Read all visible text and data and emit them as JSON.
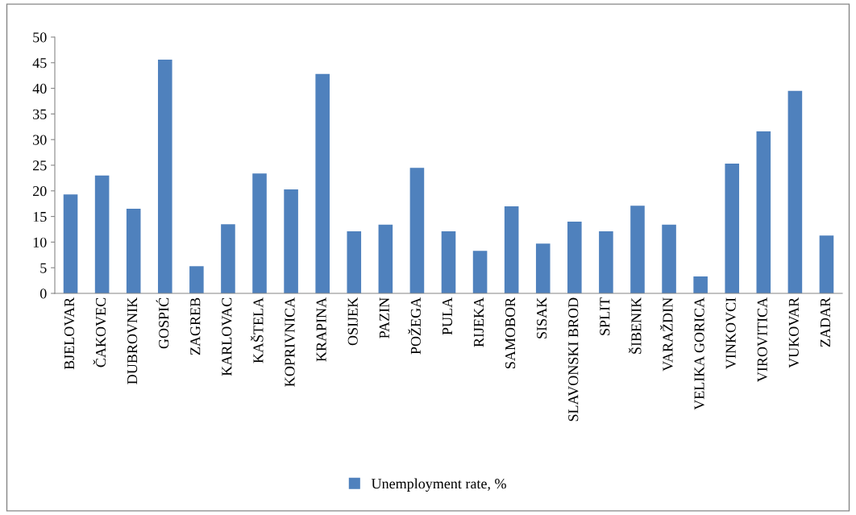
{
  "chart_data": {
    "type": "bar",
    "categories": [
      "BJELOVAR",
      "ČAKOVEC",
      "DUBROVNIK",
      "GOSPIĆ",
      "ZAGREB",
      "KARLOVAC",
      "KAŠTELA",
      "KOPRIVNICA",
      "KRAPINA",
      "OSIJEK",
      "PAZIN",
      "POŽEGA",
      "PULA",
      "RIJEKA",
      "SAMOBOR",
      "SISAK",
      "SLAVONSKI BROD",
      "SPLIT",
      "ŠIBENIK",
      "VARAŽDIN",
      "VELIKA GORICA",
      "VINKOVCI",
      "VIROVITICA",
      "VUKOVAR",
      "ZADAR"
    ],
    "series": [
      {
        "name": "Unemployment rate, %",
        "color": "#4f81bd",
        "values": [
          19.3,
          23.0,
          16.5,
          45.6,
          5.3,
          13.5,
          23.4,
          20.3,
          42.8,
          12.1,
          13.4,
          24.5,
          12.1,
          8.3,
          17.0,
          9.7,
          14.0,
          12.1,
          17.1,
          13.4,
          3.3,
          25.3,
          31.6,
          39.5,
          11.3
        ]
      }
    ],
    "ylim": [
      0,
      50
    ],
    "yticks": [
      0,
      5,
      10,
      15,
      20,
      25,
      30,
      35,
      40,
      45,
      50
    ],
    "grid": false,
    "legend": "bottom"
  }
}
